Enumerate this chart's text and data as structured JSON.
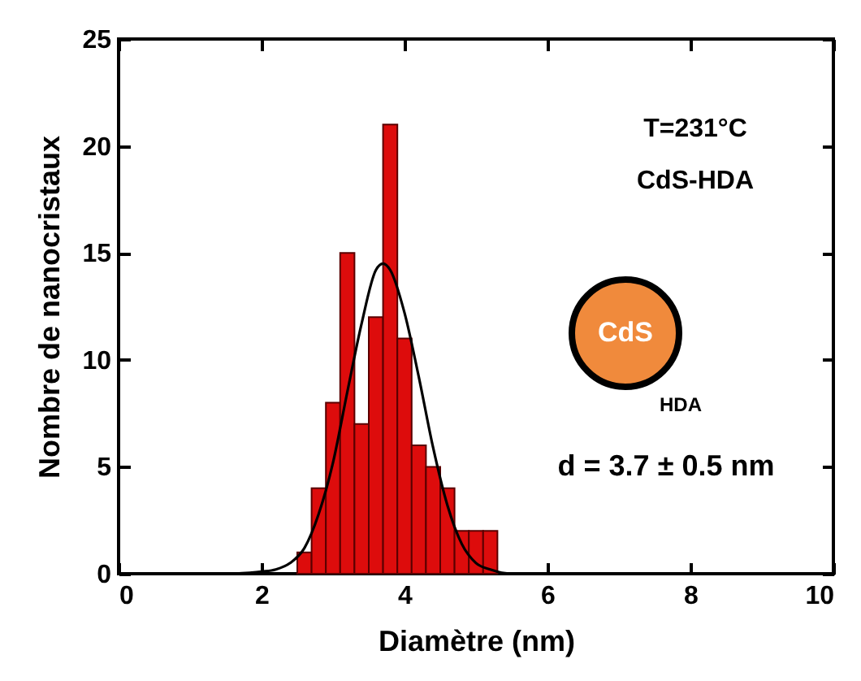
{
  "chart_data": {
    "type": "histogram",
    "xlabel": "Diamètre (nm)",
    "ylabel": "Nombre de nanocristaux",
    "bins": [
      2.5,
      2.7,
      2.9,
      3.1,
      3.3,
      3.5,
      3.7,
      3.9,
      4.1,
      4.3,
      4.5,
      4.7,
      4.9,
      5.1,
      5.3
    ],
    "values": [
      1,
      4,
      8,
      15,
      7,
      12,
      21,
      11,
      6,
      5,
      4,
      2,
      2,
      2
    ],
    "color": "#dd0c0c",
    "series": [
      {
        "type": "line",
        "color": "#000000",
        "x": [
          1.6,
          2.0,
          2.2,
          2.4,
          2.6,
          2.8,
          3.0,
          3.2,
          3.4,
          3.6,
          3.7,
          3.8,
          4.0,
          4.2,
          4.4,
          4.6,
          4.8,
          5.0,
          5.2,
          5.5,
          5.8
        ],
        "values": [
          0,
          0.1,
          0.2,
          0.5,
          1.2,
          2.8,
          5.2,
          8.5,
          11.7,
          14.2,
          14.5,
          14.2,
          12.2,
          9.2,
          5.9,
          3.2,
          1.4,
          0.5,
          0.2,
          0,
          0
        ]
      }
    ],
    "xlim": [
      0,
      10
    ],
    "xticks": [
      0,
      2,
      4,
      6,
      8,
      10
    ],
    "ylim": [
      0,
      25
    ],
    "yticks": [
      0,
      5,
      10,
      15,
      20,
      25
    ],
    "grid": false,
    "annotations": [
      "T=231°C",
      "CdS-HDA",
      "d = 3.7 ± 0.5 nm",
      "CdS",
      "HDA"
    ]
  }
}
